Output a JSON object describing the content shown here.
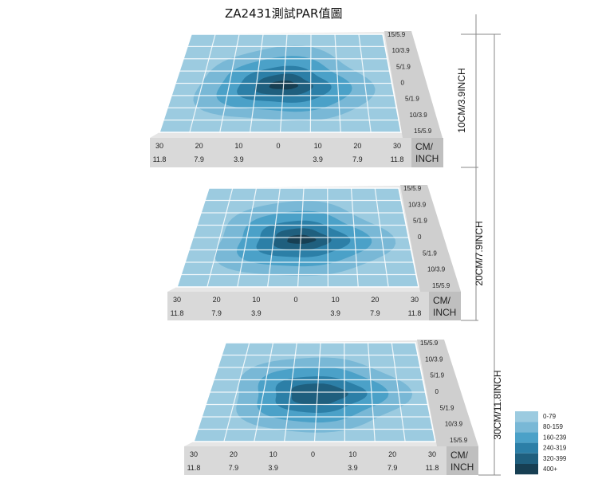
{
  "chart_data": {
    "type": "heatmap",
    "title": "ZA2431測試PAR值圖",
    "unit_label": [
      "CM/",
      "INCH"
    ],
    "x_ticks_cm": [
      "30",
      "20",
      "10",
      "0",
      "10",
      "20",
      "30"
    ],
    "x_ticks_inch": [
      "11.8",
      "7.9",
      "3.9",
      "",
      "3.9",
      "7.9",
      "11.8"
    ],
    "y_ticks": [
      "15/5.9",
      "10/3.9",
      "5/1.9",
      "0",
      "5/1.9",
      "10/3.9",
      "15/5.9"
    ],
    "panels": [
      {
        "height_label": "10CM/3.9INCH",
        "levels": [
          0,
          1,
          2,
          3,
          4,
          5
        ]
      },
      {
        "height_label": "20CM/7.9INCH",
        "levels": [
          0,
          1,
          2,
          3,
          4,
          5
        ]
      },
      {
        "height_label": "30CM/11.8INCH",
        "levels": [
          0,
          1,
          2,
          3,
          4
        ]
      }
    ],
    "legend": [
      {
        "label": "0-79",
        "color": "#9ccbe0"
      },
      {
        "label": "80-159",
        "color": "#79b8d6"
      },
      {
        "label": "160-239",
        "color": "#4ba1c8"
      },
      {
        "label": "240-319",
        "color": "#2c7fa7"
      },
      {
        "label": "320-399",
        "color": "#1f5f7e"
      },
      {
        "label": "400+",
        "color": "#173f53"
      }
    ]
  }
}
